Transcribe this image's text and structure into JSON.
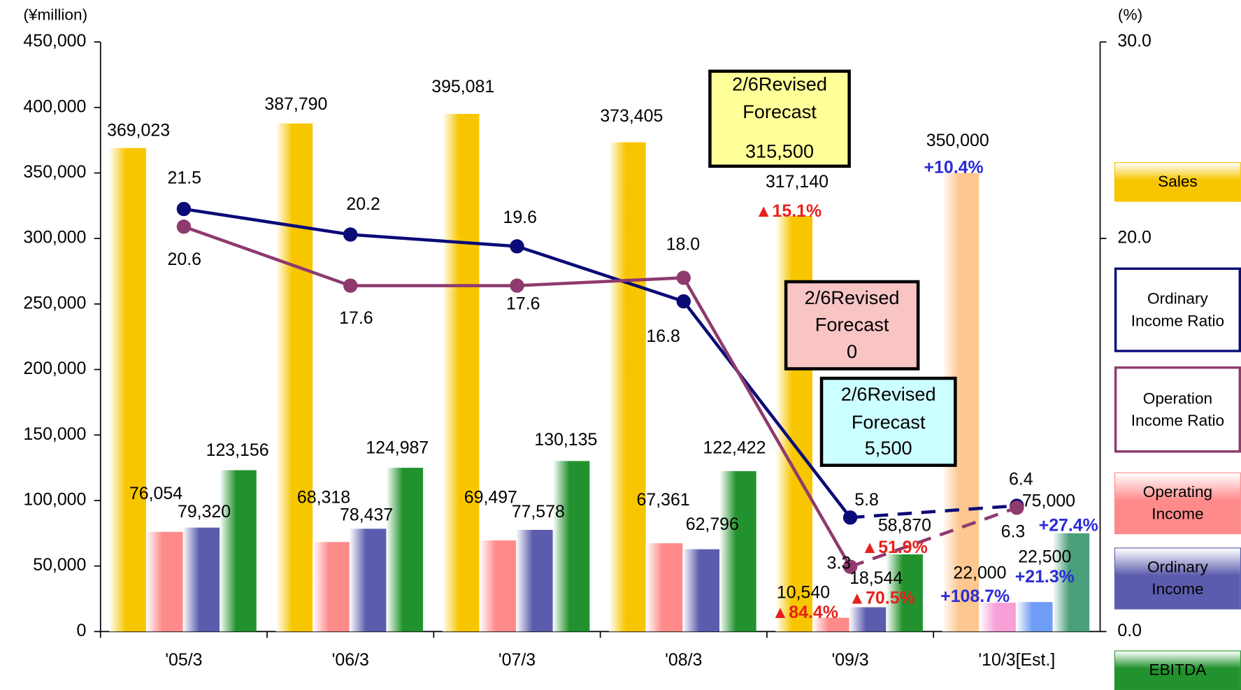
{
  "chart_data": {
    "type": "bar",
    "y_unit": "(¥million)",
    "y2_unit": "(%)",
    "categories": [
      "'05/3",
      "'06/3",
      "'07/3",
      "'08/3",
      "'09/3",
      "'10/3[Est.]"
    ],
    "ylim": [
      0,
      450000
    ],
    "yticks": [
      0,
      {
        "value": 50000,
        "label": "50,000"
      },
      {
        "value": 100000,
        "label": "100,000"
      },
      {
        "value": 150000,
        "label": "150,000"
      },
      {
        "value": 200000,
        "label": "200,000"
      },
      {
        "value": 250000,
        "label": "250,000"
      },
      {
        "value": 300000,
        "label": "300,000"
      },
      {
        "value": 350000,
        "label": "350,000"
      },
      {
        "value": 400000,
        "label": "400,000"
      },
      {
        "value": 450000,
        "label": "450,000"
      }
    ],
    "y2lim": [
      0,
      30
    ],
    "y2ticks": [
      {
        "value": 0,
        "label": "0.0"
      },
      {
        "value": 20,
        "label": "20.0"
      },
      {
        "value": 30,
        "label": "30.0"
      }
    ],
    "series": [
      {
        "name": "Sales",
        "type": "bar",
        "colors": [
          "#f7c600",
          "#f7c600",
          "#f7c600",
          "#f7c600",
          "#f7c600",
          "#fcc890"
        ],
        "values": [
          369023,
          387790,
          395081,
          373405,
          317140,
          350000
        ],
        "value_labels": [
          "369,023",
          "387,790",
          "395,081",
          "373,405",
          "317,140",
          "350,000"
        ]
      },
      {
        "name": "Ordinary Income Ratio",
        "type": "line",
        "axis": "y2",
        "color": "#0a0a78",
        "dashed_from": 4,
        "values": [
          21.5,
          20.2,
          19.6,
          16.8,
          5.8,
          6.4
        ],
        "value_labels": [
          "21.5",
          "20.2",
          "19.6",
          "16.8",
          "5.8",
          "6.4"
        ]
      },
      {
        "name": "Operation Income Ratio",
        "type": "line",
        "axis": "y2",
        "color": "#8e3a6e",
        "dashed_from": 4,
        "values": [
          20.6,
          17.6,
          17.6,
          18.0,
          3.3,
          6.3
        ],
        "value_labels": [
          "20.6",
          "17.6",
          "17.6",
          "18.0",
          "3.3",
          "6.3"
        ]
      },
      {
        "name": "Operating Income",
        "type": "bar",
        "colors": [
          "#ff8a8a",
          "#ff8a8a",
          "#ff8a8a",
          "#ff8a8a",
          "#ff8a8a",
          "#f7a0d8"
        ],
        "values": [
          76054,
          68318,
          69497,
          67361,
          10540,
          22000
        ],
        "value_labels": [
          "76,054",
          "68,318",
          "69,497",
          "67,361",
          "10,540",
          "22,000"
        ]
      },
      {
        "name": "Ordinary Income",
        "type": "bar",
        "colors": [
          "#5c5cae",
          "#5c5cae",
          "#5c5cae",
          "#5c5cae",
          "#5c5cae",
          "#6f9cf4"
        ],
        "values": [
          79320,
          78437,
          77578,
          62796,
          18544,
          22500
        ],
        "value_labels": [
          "79,320",
          "78,437",
          "77,578",
          "62,796",
          "18,544",
          "22,500"
        ]
      },
      {
        "name": "EBITDA",
        "type": "bar",
        "colors": [
          "#22922e",
          "#22922e",
          "#22922e",
          "#22922e",
          "#22922e",
          "#4aa07a"
        ],
        "values": [
          123156,
          124987,
          130135,
          122422,
          58870,
          75000
        ],
        "value_labels": [
          "123,156",
          "124,987",
          "130,135",
          "122,422",
          "58,870",
          "75,000"
        ]
      }
    ],
    "annotations": [
      {
        "text": "▲15.1%",
        "color": "#e8201c"
      },
      {
        "text": "+10.4%",
        "color": "#2b2bd8"
      },
      {
        "text": "▲84.4%",
        "color": "#e8201c"
      },
      {
        "text": "▲70.5%",
        "color": "#e8201c"
      },
      {
        "text": "▲51.9%",
        "color": "#e8201c"
      },
      {
        "text": "+108.7%",
        "color": "#2b2bd8"
      },
      {
        "text": "+21.3%",
        "color": "#2b2bd8"
      },
      {
        "text": "+27.4%",
        "color": "#2b2bd8"
      }
    ],
    "forecasts": [
      {
        "lines": [
          "2/6Revised",
          "Forecast",
          "315,500"
        ],
        "color": "#ffff99"
      },
      {
        "lines": [
          "2/6Revised",
          "Forecast",
          "0"
        ],
        "color": "#f8c4c4"
      },
      {
        "lines": [
          "2/6Revised",
          "Forecast",
          "5,500"
        ],
        "color": "#ccffff"
      }
    ]
  }
}
